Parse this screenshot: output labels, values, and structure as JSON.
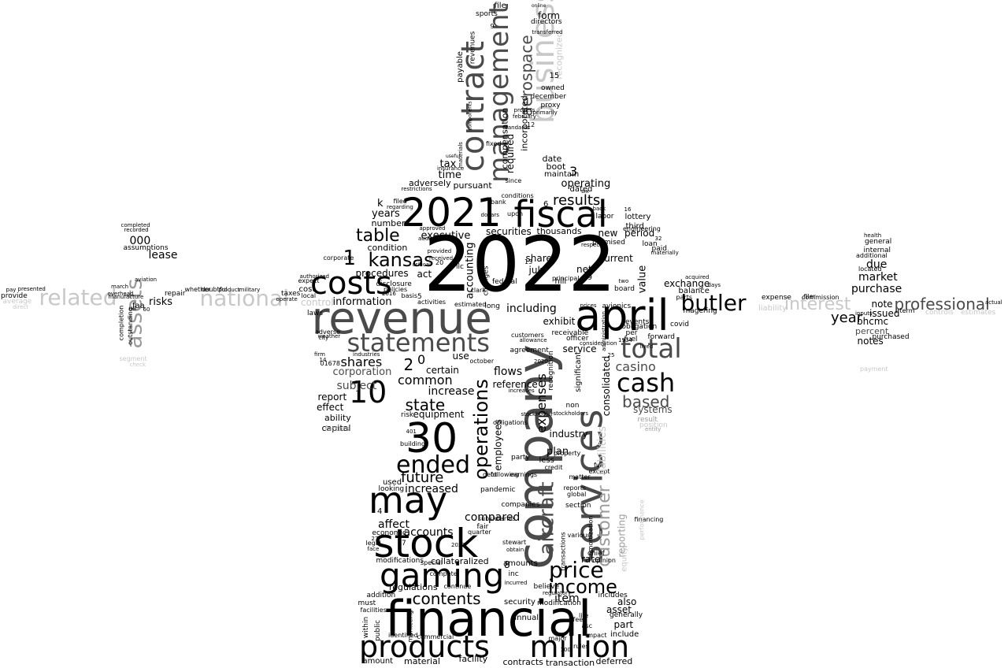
{
  "background": "#ffffff",
  "palette": {
    "black": "#000000",
    "dark": "#4a4a4a",
    "mid": "#9b9b9b",
    "light": "#c8c8c8"
  },
  "words": [
    {
      "t": "2022",
      "c": "black"
    },
    {
      "t": "company",
      "c": "dark"
    },
    {
      "t": "financial",
      "c": "black"
    },
    {
      "t": "revenue",
      "c": "dark"
    },
    {
      "t": "april",
      "c": "black"
    },
    {
      "t": "services",
      "c": "dark"
    },
    {
      "t": "2021",
      "c": "black"
    },
    {
      "t": "fiscal",
      "c": "black"
    },
    {
      "t": "30",
      "c": "black"
    },
    {
      "t": "stock",
      "c": "black"
    },
    {
      "t": "may",
      "c": "black"
    },
    {
      "t": "gaming",
      "c": "black"
    },
    {
      "t": "costs",
      "c": "black"
    },
    {
      "t": "business",
      "c": "light"
    },
    {
      "t": "contract",
      "c": "dark"
    },
    {
      "t": "management",
      "c": "dark"
    },
    {
      "t": "statements",
      "c": "dark"
    },
    {
      "t": "products",
      "c": "black"
    },
    {
      "t": "million",
      "c": "black"
    },
    {
      "t": "cash",
      "c": "black"
    },
    {
      "t": "total",
      "c": "dark"
    },
    {
      "t": "butler",
      "c": "black"
    },
    {
      "t": "10",
      "c": "black"
    },
    {
      "t": "ended",
      "c": "black"
    },
    {
      "t": "assets",
      "c": "mid"
    },
    {
      "t": "related",
      "c": "light"
    },
    {
      "t": "national",
      "c": "light"
    },
    {
      "t": "interest",
      "c": "light"
    },
    {
      "t": "professional",
      "c": "dark"
    },
    {
      "t": "aerospace",
      "c": "dark"
    },
    {
      "t": "aircraft",
      "c": "dark"
    },
    {
      "t": "customer",
      "c": "mid"
    },
    {
      "t": "operations",
      "c": "black"
    },
    {
      "t": "price",
      "c": "black"
    },
    {
      "t": "income",
      "c": "black"
    },
    {
      "t": "contents",
      "c": "black"
    },
    {
      "t": "table",
      "c": "black"
    },
    {
      "t": "kansas",
      "c": "black"
    },
    {
      "t": "results",
      "c": "black"
    },
    {
      "t": "year",
      "c": "black"
    },
    {
      "t": "based",
      "c": "dark"
    },
    {
      "t": "casino",
      "c": "dark"
    },
    {
      "t": "state",
      "c": "black"
    },
    {
      "t": "common",
      "c": "black"
    },
    {
      "t": "shares",
      "c": "black"
    },
    {
      "t": "future",
      "c": "black"
    },
    {
      "t": "increased",
      "c": "black"
    },
    {
      "t": "accounts",
      "c": "black"
    },
    {
      "t": "affect",
      "c": "black"
    },
    {
      "t": "compared",
      "c": "black"
    },
    {
      "t": "regulations",
      "c": "black"
    },
    {
      "t": "market",
      "c": "black"
    },
    {
      "t": "due",
      "c": "black"
    },
    {
      "t": "purchase",
      "c": "black"
    },
    {
      "t": "note",
      "c": "black"
    },
    {
      "t": "issued",
      "c": "black"
    },
    {
      "t": "notes",
      "c": "black"
    },
    {
      "t": "percent",
      "c": "dark"
    },
    {
      "t": "bhcmc",
      "c": "black"
    },
    {
      "t": "lease",
      "c": "black"
    },
    {
      "t": "000",
      "c": "black"
    },
    {
      "t": "risks",
      "c": "black"
    },
    {
      "t": "information",
      "c": "black"
    },
    {
      "t": "corporation",
      "c": "dark"
    },
    {
      "t": "subject",
      "c": "dark"
    },
    {
      "t": "report",
      "c": "black"
    },
    {
      "t": "effect",
      "c": "black"
    },
    {
      "t": "ability",
      "c": "black"
    },
    {
      "t": "capital",
      "c": "black"
    },
    {
      "t": "factors",
      "c": "mid"
    },
    {
      "t": "control",
      "c": "light"
    },
    {
      "t": "exchange",
      "c": "black"
    },
    {
      "t": "value",
      "c": "black"
    },
    {
      "t": "period",
      "c": "black"
    },
    {
      "t": "current",
      "c": "black"
    },
    {
      "t": "new",
      "c": "black"
    },
    {
      "t": "net",
      "c": "black"
    },
    {
      "t": "share",
      "c": "black"
    },
    {
      "t": "july",
      "c": "black"
    },
    {
      "t": "including",
      "c": "black"
    },
    {
      "t": "exhibit",
      "c": "black"
    },
    {
      "t": "service",
      "c": "black"
    },
    {
      "t": "consolidated",
      "c": "black"
    },
    {
      "t": "expenses",
      "c": "black"
    },
    {
      "t": "flows",
      "c": "black"
    },
    {
      "t": "reference",
      "c": "black"
    },
    {
      "t": "increase",
      "c": "black"
    },
    {
      "t": "certain",
      "c": "black"
    },
    {
      "t": "use",
      "c": "black"
    },
    {
      "t": "equipment",
      "c": "black"
    },
    {
      "t": "systems",
      "c": "dark"
    },
    {
      "t": "industry",
      "c": "black"
    },
    {
      "t": "plan",
      "c": "black"
    },
    {
      "t": "employees",
      "c": "black"
    },
    {
      "t": "item",
      "c": "black"
    },
    {
      "t": "asset",
      "c": "black"
    },
    {
      "t": "part",
      "c": "black"
    },
    {
      "t": "include",
      "c": "black"
    },
    {
      "t": "also",
      "c": "black"
    },
    {
      "t": "rate",
      "c": "black"
    },
    {
      "t": "amounts",
      "c": "black"
    },
    {
      "t": "collateralized",
      "c": "black"
    },
    {
      "t": "annual",
      "c": "black"
    },
    {
      "t": "security",
      "c": "black"
    },
    {
      "t": "material",
      "c": "black"
    },
    {
      "t": "facility",
      "c": "black"
    },
    {
      "t": "transaction",
      "c": "black"
    },
    {
      "t": "deferred",
      "c": "black"
    },
    {
      "t": "contracts",
      "c": "black"
    },
    {
      "t": "amount",
      "c": "black"
    },
    {
      "t": "identified",
      "c": "black"
    },
    {
      "t": "commercial",
      "c": "black"
    },
    {
      "t": "marketing",
      "c": "black"
    },
    {
      "t": "addition",
      "c": "black"
    },
    {
      "t": "continue",
      "c": "black"
    },
    {
      "t": "modifications",
      "c": "black"
    },
    {
      "t": "economic",
      "c": "black"
    },
    {
      "t": "used",
      "c": "black"
    },
    {
      "t": "looking",
      "c": "black"
    },
    {
      "t": "years",
      "c": "black"
    },
    {
      "t": "number",
      "c": "black"
    },
    {
      "t": "condition",
      "c": "black"
    },
    {
      "t": "executive",
      "c": "black"
    },
    {
      "t": "procedures",
      "c": "black"
    },
    {
      "t": "act",
      "c": "black"
    },
    {
      "t": "accounting",
      "c": "black"
    },
    {
      "t": "adversely",
      "c": "black"
    },
    {
      "t": "tax",
      "c": "black"
    },
    {
      "t": "time",
      "c": "black"
    },
    {
      "t": "pursuant",
      "c": "black"
    },
    {
      "t": "operating",
      "c": "black"
    },
    {
      "t": "securities",
      "c": "black"
    },
    {
      "t": "thousands",
      "c": "black"
    },
    {
      "t": "required",
      "c": "black"
    },
    {
      "t": "compensation",
      "c": "black"
    },
    {
      "t": "incorporated",
      "c": "black"
    },
    {
      "t": "form",
      "c": "black"
    },
    {
      "t": "payable",
      "c": "black"
    },
    {
      "t": "revenues",
      "c": "black"
    },
    {
      "t": "december",
      "c": "black"
    },
    {
      "t": "directors",
      "c": "black"
    },
    {
      "t": "sports",
      "c": "black"
    },
    {
      "t": "file",
      "c": "black"
    },
    {
      "t": "owned",
      "c": "black"
    },
    {
      "t": "proxy",
      "c": "black"
    },
    {
      "t": "recognized",
      "c": "light"
    },
    {
      "t": "date",
      "c": "black"
    },
    {
      "t": "boot",
      "c": "black"
    },
    {
      "t": "maintain",
      "c": "black"
    },
    {
      "t": "dated",
      "c": "black"
    },
    {
      "t": "lottery",
      "c": "black"
    },
    {
      "t": "third",
      "c": "black"
    },
    {
      "t": "promised",
      "c": "black"
    },
    {
      "t": "board",
      "c": "black"
    },
    {
      "t": "avionics",
      "c": "black"
    },
    {
      "t": "obligation",
      "c": "black"
    },
    {
      "t": "per",
      "c": "black"
    },
    {
      "t": "fuel",
      "c": "black"
    },
    {
      "t": "events",
      "c": "black"
    },
    {
      "t": "loan",
      "c": "black"
    },
    {
      "t": "forward",
      "c": "black"
    },
    {
      "t": "balance",
      "c": "black"
    },
    {
      "t": "magering",
      "c": "black"
    },
    {
      "t": "covid",
      "c": "black"
    },
    {
      "t": "expense",
      "c": "black"
    },
    {
      "t": "liability",
      "c": "light"
    },
    {
      "t": "general",
      "c": "black"
    },
    {
      "t": "internal",
      "c": "black"
    },
    {
      "t": "additional",
      "c": "black"
    },
    {
      "t": "located",
      "c": "black"
    },
    {
      "t": "purchased",
      "c": "black"
    },
    {
      "t": "term",
      "c": "black"
    },
    {
      "t": "controls",
      "c": "light"
    },
    {
      "t": "estimates",
      "c": "light"
    },
    {
      "t": "payment",
      "c": "light"
    },
    {
      "t": "provide",
      "c": "black"
    },
    {
      "t": "average",
      "c": "light"
    },
    {
      "t": "segment",
      "c": "light"
    },
    {
      "t": "check",
      "c": "light"
    },
    {
      "t": "faa",
      "c": "black"
    },
    {
      "t": "assumptions",
      "c": "black"
    },
    {
      "t": "completion",
      "c": "black"
    },
    {
      "t": "outstanding",
      "c": "black"
    },
    {
      "t": "repair",
      "c": "black"
    },
    {
      "t": "cost",
      "c": "black"
    },
    {
      "t": "taxes",
      "c": "black"
    },
    {
      "t": "local",
      "c": "black"
    },
    {
      "t": "expect",
      "c": "black"
    },
    {
      "t": "laws",
      "c": "black"
    },
    {
      "t": "adverse",
      "c": "black"
    },
    {
      "t": "corporate",
      "c": "black"
    },
    {
      "t": "disclosure",
      "c": "black"
    },
    {
      "t": "policies",
      "c": "black"
    },
    {
      "t": "basis",
      "c": "black"
    },
    {
      "t": "activities",
      "c": "black"
    },
    {
      "t": "estimated",
      "c": "black"
    },
    {
      "t": "changes",
      "c": "black"
    },
    {
      "t": "fixed",
      "c": "black"
    },
    {
      "t": "since",
      "c": "black"
    },
    {
      "t": "conditions",
      "c": "black"
    },
    {
      "t": "upon",
      "c": "black"
    },
    {
      "t": "bank",
      "c": "black"
    },
    {
      "t": "federal",
      "c": "black"
    },
    {
      "t": "long",
      "c": "black"
    },
    {
      "t": "hill",
      "c": "black"
    },
    {
      "t": "principal",
      "c": "black"
    },
    {
      "t": "receivable",
      "c": "black"
    },
    {
      "t": "officer",
      "c": "black"
    },
    {
      "t": "agreement",
      "c": "black"
    },
    {
      "t": "customers",
      "c": "black"
    },
    {
      "t": "recognition",
      "c": "black"
    },
    {
      "t": "significant",
      "c": "black"
    },
    {
      "t": "non",
      "c": "black"
    },
    {
      "t": "less",
      "c": "black"
    },
    {
      "t": "party",
      "c": "black"
    },
    {
      "t": "obligations",
      "c": "black"
    },
    {
      "t": "credit",
      "c": "black"
    },
    {
      "t": "property",
      "c": "black"
    },
    {
      "t": "pandemic",
      "c": "black"
    },
    {
      "t": "companies",
      "c": "black"
    },
    {
      "t": "section",
      "c": "black"
    },
    {
      "t": "reports",
      "c": "black"
    },
    {
      "t": "global",
      "c": "black"
    },
    {
      "t": "subsidiaries",
      "c": "black"
    },
    {
      "t": "stewart",
      "c": "black"
    },
    {
      "t": "obtain",
      "c": "black"
    },
    {
      "t": "inc",
      "c": "black"
    },
    {
      "t": "incurred",
      "c": "black"
    },
    {
      "t": "chief",
      "c": "black"
    },
    {
      "t": "amortization",
      "c": "black"
    },
    {
      "t": "various",
      "c": "black"
    },
    {
      "t": "believe",
      "c": "black"
    },
    {
      "t": "transactions",
      "c": "black"
    },
    {
      "t": "modification",
      "c": "black"
    },
    {
      "t": "life",
      "c": "black"
    },
    {
      "t": "generally",
      "c": "black"
    },
    {
      "t": "includes",
      "c": "black"
    },
    {
      "t": "impact",
      "c": "black"
    },
    {
      "t": "rules",
      "c": "black"
    },
    {
      "t": "major",
      "c": "black"
    },
    {
      "t": "fair",
      "c": "black"
    },
    {
      "t": "quarter",
      "c": "black"
    },
    {
      "t": "debt",
      "c": "black"
    },
    {
      "t": "following",
      "c": "black"
    },
    {
      "t": "earnings",
      "c": "black"
    },
    {
      "t": "building",
      "c": "black"
    },
    {
      "t": "risk",
      "c": "black"
    },
    {
      "t": "operate",
      "c": "black"
    },
    {
      "t": "labor",
      "c": "black"
    },
    {
      "t": "financing",
      "c": "black"
    },
    {
      "t": "engineering",
      "c": "black"
    },
    {
      "t": "full",
      "c": "black"
    },
    {
      "t": "except",
      "c": "black"
    },
    {
      "t": "entity",
      "c": "mid"
    },
    {
      "t": "position",
      "c": "light"
    },
    {
      "t": "result",
      "c": "mid"
    },
    {
      "t": "reporting",
      "c": "mid"
    },
    {
      "t": "liabilities",
      "c": "light"
    },
    {
      "t": "equity",
      "c": "light"
    },
    {
      "t": "performance",
      "c": "light"
    },
    {
      "t": "legal",
      "c": "black"
    },
    {
      "t": "face",
      "c": "black"
    },
    {
      "t": "facilities",
      "c": "black"
    },
    {
      "t": "must",
      "c": "black"
    },
    {
      "t": "within",
      "c": "black"
    },
    {
      "t": "public",
      "c": "black"
    },
    {
      "t": "special",
      "c": "black"
    },
    {
      "t": "compete",
      "c": "black"
    },
    {
      "t": "whether",
      "c": "black"
    },
    {
      "t": "doubtful",
      "c": "black"
    },
    {
      "t": "military",
      "c": "black"
    },
    {
      "t": "commission",
      "c": "black"
    },
    {
      "t": "filer",
      "c": "black"
    },
    {
      "t": "actual",
      "c": "black"
    },
    {
      "t": "inputs",
      "c": "black"
    },
    {
      "t": "health",
      "c": "black"
    },
    {
      "t": "dollars",
      "c": "black"
    },
    {
      "t": "restrictions",
      "c": "black"
    },
    {
      "t": "regarding",
      "c": "black"
    },
    {
      "t": "filed",
      "c": "black"
    },
    {
      "t": "audit",
      "c": "black"
    },
    {
      "t": "approved",
      "c": "black"
    },
    {
      "t": "provided",
      "c": "black"
    },
    {
      "t": "received",
      "c": "black"
    },
    {
      "t": "critical",
      "c": "black"
    },
    {
      "t": "parts",
      "c": "black"
    },
    {
      "t": "acquired",
      "c": "black"
    },
    {
      "t": "days",
      "c": "black"
    },
    {
      "t": "primarily",
      "c": "black"
    },
    {
      "t": "process",
      "c": "black"
    },
    {
      "t": "february",
      "c": "black"
    },
    {
      "t": "standards",
      "c": "black"
    },
    {
      "t": "transferred",
      "c": "black"
    },
    {
      "t": "online",
      "c": "black"
    },
    {
      "t": "insurance",
      "c": "black"
    },
    {
      "t": "materials",
      "c": "black"
    },
    {
      "t": "useful",
      "c": "black"
    },
    {
      "t": "components",
      "c": "black"
    },
    {
      "t": "manufacture",
      "c": "black"
    },
    {
      "t": "recorded",
      "c": "black"
    },
    {
      "t": "completed",
      "c": "black"
    },
    {
      "t": "march",
      "c": "black"
    },
    {
      "t": "aviation",
      "c": "black"
    },
    {
      "t": "direct",
      "c": "light"
    },
    {
      "t": "overhead",
      "c": "black"
    },
    {
      "t": "pay",
      "c": "black"
    },
    {
      "t": "presented",
      "c": "black"
    },
    {
      "t": "product",
      "c": "black"
    },
    {
      "t": "authorized",
      "c": "black"
    },
    {
      "t": "weather",
      "c": "black"
    },
    {
      "t": "city",
      "c": "black"
    },
    {
      "t": "firm",
      "c": "black"
    },
    {
      "t": "llc",
      "c": "black"
    },
    {
      "t": "clark",
      "c": "black"
    },
    {
      "t": "stockholder",
      "c": "black"
    },
    {
      "t": "stockholders",
      "c": "black"
    },
    {
      "t": "increases",
      "c": "black"
    },
    {
      "t": "regulatory",
      "c": "black"
    },
    {
      "t": "industries",
      "c": "black"
    },
    {
      "t": "matter",
      "c": "black"
    },
    {
      "t": "opinion",
      "c": "black"
    },
    {
      "t": "fees",
      "c": "black"
    },
    {
      "t": "asc",
      "c": "black"
    },
    {
      "t": "lived",
      "c": "black"
    },
    {
      "t": "allowance",
      "c": "black"
    },
    {
      "t": "consideration",
      "c": "black"
    },
    {
      "t": "administration",
      "c": "black"
    },
    {
      "t": "prices",
      "c": "black"
    },
    {
      "t": "respect",
      "c": "black"
    },
    {
      "t": "paid",
      "c": "black"
    },
    {
      "t": "materially",
      "c": "black"
    },
    {
      "t": "k",
      "c": "black"
    },
    {
      "t": "1",
      "c": "black"
    },
    {
      "t": "2",
      "c": "black"
    },
    {
      "t": "0",
      "c": "black"
    },
    {
      "t": "3",
      "c": "black"
    },
    {
      "t": "4",
      "c": "black"
    },
    {
      "t": "5",
      "c": "black"
    },
    {
      "t": "6",
      "c": "black"
    },
    {
      "t": "7",
      "c": "black"
    },
    {
      "t": "8",
      "c": "black"
    },
    {
      "t": "9",
      "c": "black"
    },
    {
      "t": "12",
      "c": "black"
    },
    {
      "t": "13",
      "c": "black"
    },
    {
      "t": "14",
      "c": "black"
    },
    {
      "t": "15",
      "c": "black"
    },
    {
      "t": "16",
      "c": "black"
    },
    {
      "t": "19",
      "c": "black"
    },
    {
      "t": "20",
      "c": "black"
    },
    {
      "t": "25",
      "c": "black"
    },
    {
      "t": "27",
      "c": "black"
    },
    {
      "t": "32",
      "c": "black"
    },
    {
      "t": "60",
      "c": "black"
    },
    {
      "t": "100",
      "c": "black"
    },
    {
      "t": "401",
      "c": "black"
    },
    {
      "t": "1934",
      "c": "black"
    },
    {
      "t": "2016",
      "c": "black"
    },
    {
      "t": "2019",
      "c": "black"
    },
    {
      "t": "2020",
      "c": "black"
    },
    {
      "t": "2023",
      "c": "black"
    },
    {
      "t": "01678",
      "c": "black"
    },
    {
      "t": "us",
      "c": "black"
    },
    {
      "t": "october",
      "c": "black"
    },
    {
      "t": "two",
      "c": "black"
    },
    {
      "t": "back",
      "c": "black"
    },
    {
      "t": "six",
      "c": "black"
    }
  ]
}
